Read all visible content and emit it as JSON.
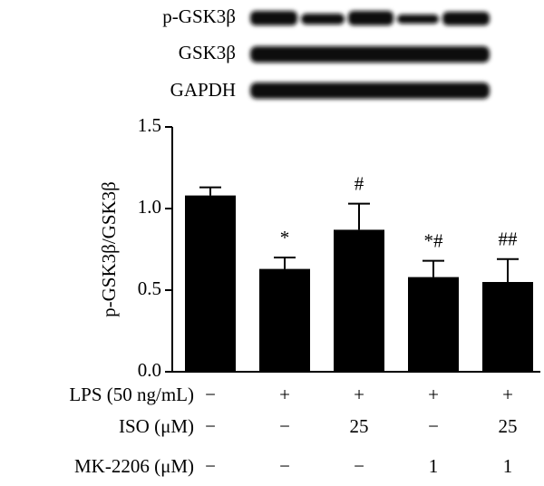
{
  "chart_data": {
    "type": "bar",
    "blot_labels": [
      "p-GSK3β",
      "GSK3β",
      "GAPDH"
    ],
    "y_label": "p-GSK3β/GSK3β",
    "categories": [
      null,
      null,
      null,
      null,
      null
    ],
    "values": [
      1.08,
      0.63,
      0.87,
      0.58,
      0.55
    ],
    "errors": [
      0.05,
      0.07,
      0.16,
      0.1,
      0.14
    ],
    "annotations": [
      null,
      "*",
      "#",
      "*#",
      "##"
    ],
    "color": "#000000",
    "ylim": [
      0,
      1.5
    ],
    "yticks": [
      {
        "value": 0,
        "label": "0.0"
      },
      0.5,
      {
        "value": 1,
        "label": "1.0"
      },
      1.5
    ],
    "conditions": [
      {
        "label": "LPS (50 ng/mL)",
        "values": [
          "−",
          "+",
          "+",
          "+",
          "+"
        ]
      },
      {
        "label": "ISO (μM)",
        "values": [
          "−",
          "−",
          "25",
          "−",
          "25"
        ]
      },
      {
        "label": "MK-2206 (μM)",
        "values": [
          "−",
          "−",
          "−",
          "1",
          "1"
        ]
      }
    ]
  }
}
